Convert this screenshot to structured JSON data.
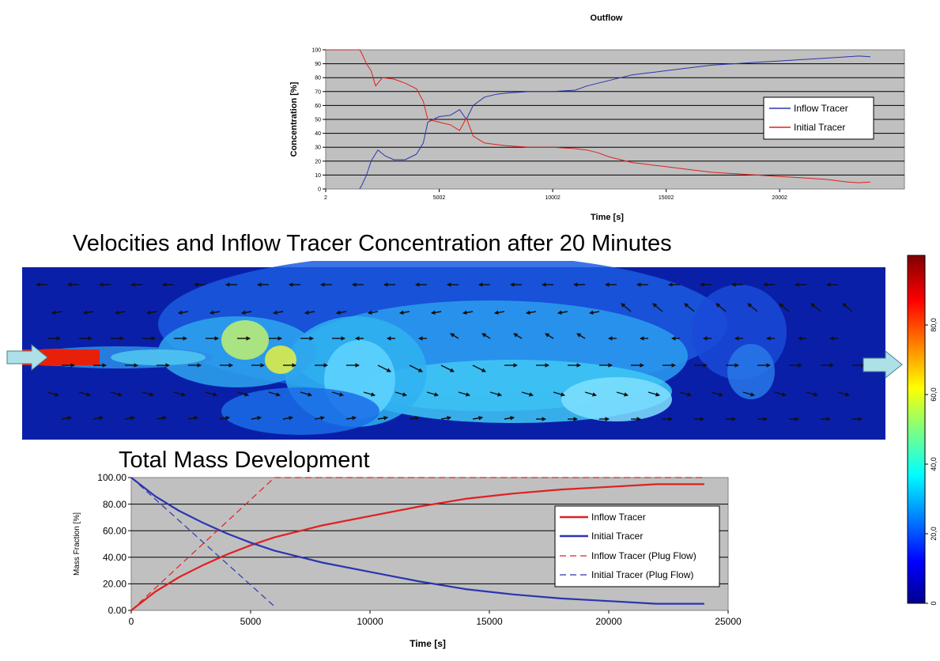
{
  "chart_data": [
    {
      "type": "line",
      "title": "Outflow",
      "xlabel": "Time [s]",
      "ylabel": "Concentration [%]",
      "xlim": [
        2,
        25500
      ],
      "ylim": [
        0,
        100
      ],
      "x_ticks": [
        2,
        5002,
        10002,
        15002,
        20002
      ],
      "x_tick_labels": [
        "2",
        "5002",
        "10002",
        "15002",
        "20002"
      ],
      "y_ticks": [
        0,
        10,
        20,
        30,
        40,
        50,
        60,
        70,
        80,
        90,
        100
      ],
      "y_tick_labels": [
        "0",
        "10",
        "20",
        "30",
        "40",
        "50",
        "60",
        "70",
        "80",
        "90",
        "100"
      ],
      "grid": "horizontal",
      "legend_position": "right",
      "series": [
        {
          "name": "Inflow Tracer",
          "color": "#2b35b0",
          "x": [
            1500,
            1600,
            1800,
            2000,
            2300,
            2600,
            3000,
            3500,
            4000,
            4300,
            4500,
            5000,
            5500,
            5900,
            6200,
            6500,
            7000,
            7500,
            8000,
            9000,
            10000,
            11000,
            11500,
            12000,
            12500,
            13000,
            13500,
            14000,
            14500,
            15000,
            15500,
            16000,
            16500,
            17000,
            18000,
            19000,
            20000,
            21000,
            22000,
            23000,
            23500,
            24000
          ],
          "y": [
            0,
            3,
            10,
            20,
            28,
            24,
            21,
            21,
            25,
            33,
            48,
            52,
            53,
            57,
            50,
            60,
            66,
            68,
            69,
            70,
            70,
            71,
            74,
            76,
            78,
            80,
            82,
            83,
            84,
            85,
            86,
            87,
            88,
            89,
            90,
            91,
            92,
            93,
            94,
            95,
            95.5,
            95
          ]
        },
        {
          "name": "Initial Tracer",
          "color": "#e02020",
          "x": [
            2,
            1000,
            1500,
            1600,
            1800,
            2000,
            2200,
            2500,
            3000,
            3500,
            4000,
            4300,
            4500,
            5000,
            5500,
            5900,
            6200,
            6500,
            7000,
            7500,
            8000,
            9000,
            10000,
            11000,
            11500,
            12000,
            12500,
            13000,
            13500,
            14000,
            14500,
            15000,
            15500,
            16000,
            16500,
            17000,
            18000,
            19000,
            20000,
            21000,
            22000,
            23000,
            23500,
            24000
          ],
          "y": [
            100,
            100,
            100,
            97,
            90,
            85,
            74,
            80,
            79,
            76,
            72,
            63,
            50,
            48,
            46,
            42,
            51,
            38,
            33,
            32,
            31,
            30,
            30,
            29,
            28,
            26,
            23,
            21,
            19,
            18,
            17,
            16,
            15,
            14,
            13,
            12,
            11,
            10,
            9,
            8,
            7,
            5,
            4.5,
            5
          ]
        }
      ]
    },
    {
      "type": "heatmap",
      "title": "Velocities and Inflow Tracer Concentration after 20 Minutes",
      "colorbar": {
        "min": 0,
        "max": 100,
        "ticks": [
          0,
          20,
          40,
          60,
          80
        ],
        "tick_labels": [
          "0",
          "20,0",
          "40,0",
          "60,0",
          "80,0"
        ]
      }
    },
    {
      "type": "line",
      "title": "Total Mass Development",
      "xlabel": "Time [s]",
      "ylabel": "Mass Fraction [%]",
      "xlim": [
        0,
        25000
      ],
      "ylim": [
        0,
        100
      ],
      "x_ticks": [
        0,
        5000,
        10000,
        15000,
        20000,
        25000
      ],
      "x_tick_labels": [
        "0",
        "5000",
        "10000",
        "15000",
        "20000",
        "25000"
      ],
      "y_ticks": [
        0,
        20,
        40,
        60,
        80,
        100
      ],
      "y_tick_labels": [
        "0.00",
        "20.00",
        "40.00",
        "60.00",
        "80.00",
        "100.00"
      ],
      "grid": "horizontal",
      "legend_position": "right",
      "series": [
        {
          "name": "Inflow Tracer",
          "color": "#e02020",
          "style": "solid",
          "x": [
            0,
            1000,
            2000,
            3000,
            4000,
            5000,
            6000,
            8000,
            10000,
            12000,
            14000,
            16000,
            18000,
            20000,
            22000,
            24000
          ],
          "y": [
            0,
            14,
            25,
            34,
            42,
            49,
            55,
            64,
            71,
            78,
            84,
            88,
            91,
            93,
            95,
            95
          ]
        },
        {
          "name": "Initial Tracer",
          "color": "#2b35b0",
          "style": "solid",
          "x": [
            0,
            1000,
            2000,
            3000,
            4000,
            5000,
            6000,
            8000,
            10000,
            12000,
            14000,
            16000,
            18000,
            20000,
            22000,
            24000
          ],
          "y": [
            100,
            86,
            75,
            66,
            58,
            51,
            45,
            36,
            29,
            22,
            16,
            12,
            9,
            7,
            5,
            5
          ]
        },
        {
          "name": "Inflow Tracer (Plug Flow)",
          "color": "#e02020",
          "style": "dashed",
          "x": [
            0,
            6000,
            24000
          ],
          "y": [
            0,
            100,
            100
          ]
        },
        {
          "name": "Initial Tracer (Plug Flow)",
          "color": "#2b35b0",
          "style": "dashed",
          "x": [
            0,
            6000
          ],
          "y": [
            100,
            3
          ]
        }
      ]
    }
  ]
}
